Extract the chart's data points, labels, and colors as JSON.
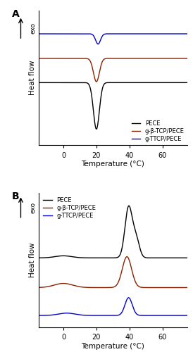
{
  "xlim": [
    -15,
    75
  ],
  "xticks": [
    0,
    20,
    40,
    60
  ],
  "xlabel": "Temperature (°C)",
  "ylabel": "Heat flow",
  "exo_label": "exo",
  "panel_A_label": "A",
  "panel_B_label": "B",
  "colors": {
    "PECE": "#000000",
    "g-beta-TCP": "#8B2000",
    "g-TTCP": "#0000CC"
  },
  "legend_labels": [
    "PECE",
    "g-β-TCP/PECE",
    "g-TTCP/PECE"
  ],
  "background_color": "#ffffff",
  "A_offsets": [
    0.0,
    0.52,
    1.05
  ],
  "A_amps": [
    -1.0,
    -0.5,
    -0.22
  ],
  "A_peaks": [
    20.0,
    20.0,
    21.0
  ],
  "A_sigmas": [
    1.8,
    1.8,
    1.5
  ],
  "B_offsets": [
    0.45,
    -0.05,
    -0.52
  ],
  "B_main_peaks": [
    39.5,
    38.5,
    39.5
  ],
  "B_main_sigmas": [
    2.2,
    2.8,
    2.2
  ],
  "B_main_amps": [
    0.85,
    0.52,
    0.3
  ],
  "B_second_peaks": [
    44.0,
    -999,
    -999
  ],
  "B_second_amps": [
    0.32,
    0,
    0
  ],
  "B_second_sigmas": [
    2.0,
    1,
    1
  ],
  "B_small_peaks": [
    0.0,
    0.0,
    2.0
  ],
  "B_small_amps": [
    0.035,
    0.07,
    0.04
  ],
  "B_small_sigmas": [
    5.0,
    5.5,
    5.0
  ]
}
